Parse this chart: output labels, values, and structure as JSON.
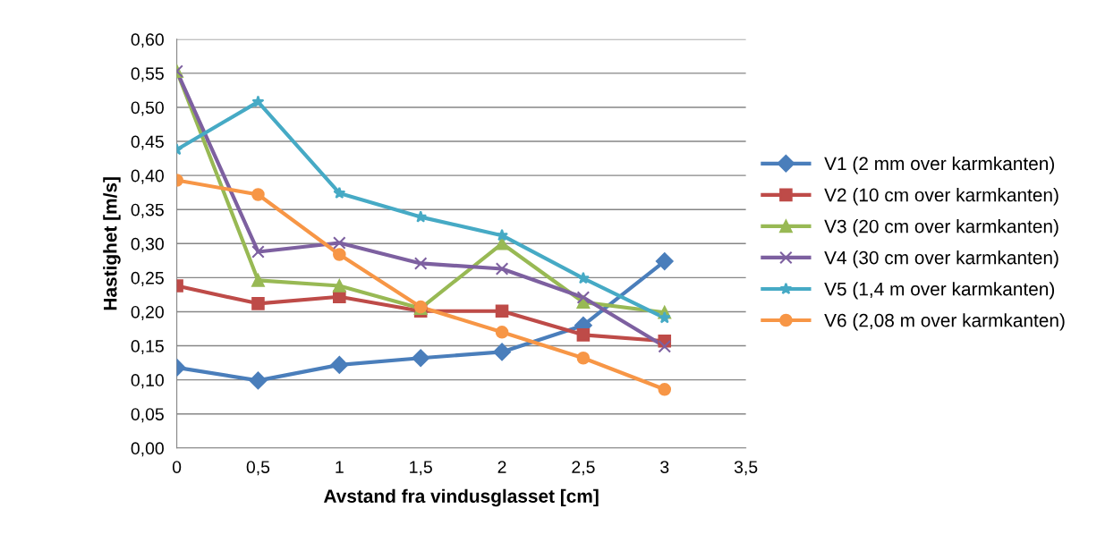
{
  "chart_data": {
    "type": "line",
    "xlabel": "Avstand fra vindusglasset [cm]",
    "ylabel": "Hastighet [m/s]",
    "x": [
      0,
      0.5,
      1,
      1.5,
      2,
      2.5,
      3
    ],
    "series": [
      {
        "name": "V1 (2 mm over karmkanten)",
        "color": "#4a7ebb",
        "marker": "diamond",
        "values": [
          0.118,
          0.099,
          0.122,
          0.132,
          0.141,
          0.18,
          0.274
        ]
      },
      {
        "name": "V2 (10 cm over karmkanten)",
        "color": "#be4b48",
        "marker": "square",
        "values": [
          0.238,
          0.212,
          0.222,
          0.201,
          0.201,
          0.166,
          0.157
        ]
      },
      {
        "name": "V3 (20 cm over karmkanten)",
        "color": "#98b954",
        "marker": "triangle",
        "values": [
          0.553,
          0.246,
          0.238,
          0.205,
          0.3,
          0.214,
          0.199
        ]
      },
      {
        "name": "V4 (30 cm over karmkanten)",
        "color": "#7d60a0",
        "marker": "cross",
        "values": [
          0.553,
          0.288,
          0.301,
          0.271,
          0.263,
          0.221,
          0.149
        ]
      },
      {
        "name": "V5 (1,4 m over karmkanten)",
        "color": "#46aac5",
        "marker": "star",
        "values": [
          0.438,
          0.508,
          0.374,
          0.339,
          0.312,
          0.249,
          0.191
        ]
      },
      {
        "name": "V6 (2,08 m over karmkanten)",
        "color": "#f79646",
        "marker": "circle",
        "values": [
          0.393,
          0.372,
          0.284,
          0.207,
          0.17,
          0.132,
          0.086
        ]
      }
    ],
    "xlim": [
      0,
      3.5
    ],
    "xticks": [
      0,
      {
        "value": 0.5,
        "label": "0,5"
      },
      1,
      {
        "value": 1.5,
        "label": "1,5"
      },
      2,
      {
        "value": 2.5,
        "label": "2,5"
      },
      3,
      {
        "value": 3.5,
        "label": "3,5"
      }
    ],
    "ylim": [
      0,
      0.6
    ],
    "yticks": [
      {
        "value": 0,
        "label": "0,00"
      },
      {
        "value": 0.05,
        "label": "0,05"
      },
      {
        "value": 0.1,
        "label": "0,10"
      },
      {
        "value": 0.15,
        "label": "0,15"
      },
      {
        "value": 0.2,
        "label": "0,20"
      },
      {
        "value": 0.25,
        "label": "0,25"
      },
      {
        "value": 0.3,
        "label": "0,30"
      },
      {
        "value": 0.35,
        "label": "0,35"
      },
      {
        "value": 0.4,
        "label": "0,40"
      },
      {
        "value": 0.45,
        "label": "0,45"
      },
      {
        "value": 0.5,
        "label": "0,50"
      },
      {
        "value": 0.55,
        "label": "0,55"
      },
      {
        "value": 0.6,
        "label": "0,60"
      }
    ],
    "grid": "y",
    "legend": "right",
    "line_style": "solid"
  }
}
